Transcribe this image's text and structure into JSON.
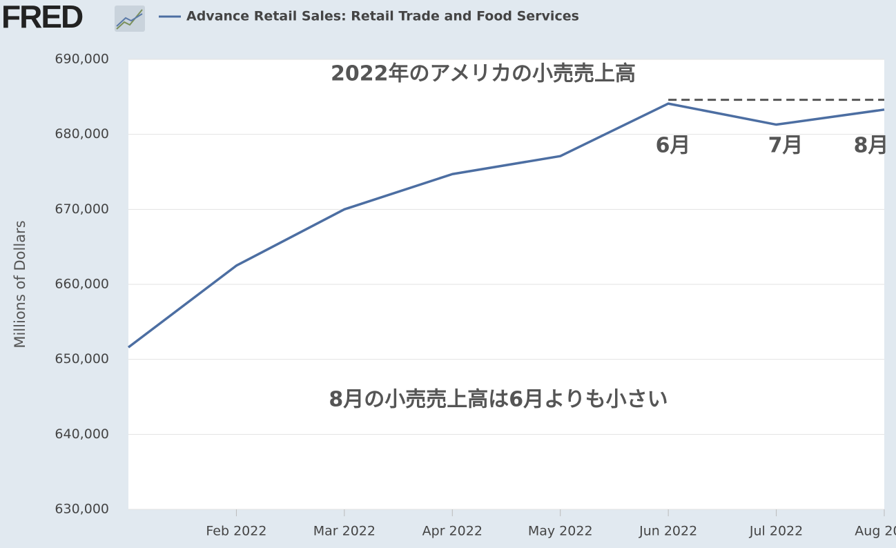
{
  "chart_data": {
    "type": "line",
    "logo": "FRED",
    "y_label": "Millions of Dollars",
    "categories": [
      null,
      "Feb 2022",
      "Mar 2022",
      "Apr 2022",
      "May 2022",
      "Jun 2022",
      "Jul 2022",
      "Aug 20..."
    ],
    "series": [
      {
        "name": "Advance Retail Sales: Retail Trade and Food Services",
        "color": "#4c6ea2",
        "values": [
          651600,
          662500,
          670000,
          674700,
          677100,
          684100,
          681300,
          683300
        ]
      }
    ],
    "ylim": [
      630000,
      690000
    ],
    "yticks": [
      {
        "value": 630000,
        "label": "630,000"
      },
      {
        "value": 640000,
        "label": "640,000"
      },
      {
        "value": 650000,
        "label": "650,000"
      },
      {
        "value": 660000,
        "label": "660,000"
      },
      {
        "value": 670000,
        "label": "670,000"
      },
      {
        "value": 680000,
        "label": "680,000"
      },
      {
        "value": 690000,
        "label": "690,000"
      }
    ],
    "grid": true,
    "reference_line": 684600,
    "annotations": [
      "2022年のアメリカの小売売上高",
      "6月",
      "7月",
      "8月",
      "8月の小売売上高は6月よりも小さい"
    ]
  }
}
